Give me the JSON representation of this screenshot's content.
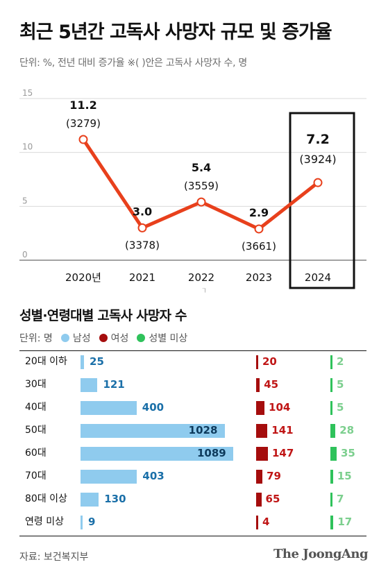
{
  "title": "최근 5년간 고독사 사망자 규모 및 증가율",
  "unit_note": "단위: %, 전년 대비 증가율   ※( )안은 고독사 사망자 수, 명",
  "chart_data": [
    {
      "type": "line",
      "categories": [
        "2020년",
        "2021",
        "2022",
        "2023",
        "2024"
      ],
      "values": [
        11.2,
        3.0,
        5.4,
        2.9,
        7.2
      ],
      "value_labels": [
        "11.2",
        "3.0",
        "5.4",
        "2.9",
        "7.2"
      ],
      "counts": [
        "(3279)",
        "(3378)",
        "(3559)",
        "(3661)",
        "(3924)"
      ],
      "yticks": [
        "15",
        "10",
        "5",
        "0"
      ],
      "ylim": [
        0,
        15
      ],
      "highlight": "2024",
      "color": "#e8401c"
    },
    {
      "type": "bar",
      "title": "성별·연령대별 고독사 사망자 수",
      "unit": "단위: 명",
      "categories": [
        "20대 이하",
        "30대",
        "40대",
        "50대",
        "60대",
        "70대",
        "80대 이상",
        "연령 미상"
      ],
      "series": [
        {
          "name": "남성",
          "color": "#8fcbee",
          "label_color": "#1a6fa8",
          "values": [
            25,
            121,
            400,
            1028,
            1089,
            403,
            130,
            9
          ]
        },
        {
          "name": "여성",
          "color": "#a50d0d",
          "label_color": "#c01616",
          "values": [
            20,
            45,
            104,
            141,
            147,
            79,
            65,
            4
          ]
        },
        {
          "name": "성별 미상",
          "color": "#2fc25b",
          "label_color": "#7ccf8e",
          "values": [
            2,
            5,
            5,
            28,
            35,
            15,
            7,
            17
          ]
        }
      ]
    }
  ],
  "source": "자료: 보건복지부",
  "brand": "The JoongAng"
}
